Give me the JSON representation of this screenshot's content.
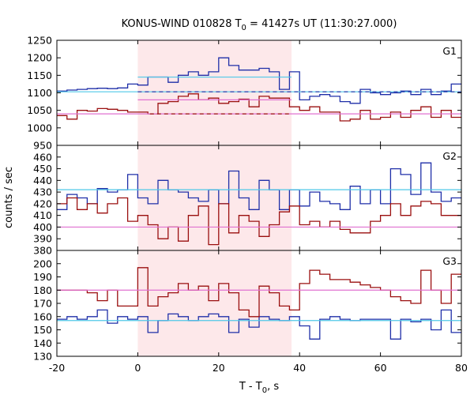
{
  "figure": {
    "title_main": "KONUS-WIND 010828 T",
    "title_sub": "0",
    "title_rest": " = 41427s UT (11:30:27.000)",
    "xlabel_main": "T - T",
    "xlabel_sub": "0",
    "xlabel_rest": ", s",
    "ylabel": "counts / sec"
  },
  "colors": {
    "blue": "#1f2fa8",
    "red": "#9a0f0f",
    "cyan": "#4fc8e8",
    "pink": "#e070d0",
    "shade": "#fde8ea"
  },
  "chart_data": [
    {
      "type": "line",
      "panel": "G1",
      "label": "G1",
      "xlim": [
        -20,
        80
      ],
      "ylim": [
        950,
        1250
      ],
      "yticks": [
        950,
        1000,
        1050,
        1100,
        1150,
        1200,
        1250
      ],
      "shaded_interval": [
        0,
        38
      ],
      "bin_edges": [
        -20,
        -17.5,
        -15,
        -12.5,
        -10,
        -7.5,
        -5,
        -2.5,
        0,
        2.5,
        5,
        7.5,
        10,
        12.5,
        15,
        17.5,
        20,
        22.5,
        25,
        27.5,
        30,
        32.5,
        35,
        37.5,
        40,
        42.5,
        45,
        47.5,
        50,
        52.5,
        55,
        57.5,
        60,
        62.5,
        65,
        67.5,
        70,
        72.5,
        75,
        77.5,
        80
      ],
      "series": [
        {
          "color": "blue",
          "style": "step",
          "values": [
            1105,
            1108,
            1110,
            1112,
            1113,
            1112,
            1114,
            1125,
            1122,
            1145,
            1145,
            1130,
            1150,
            1160,
            1150,
            1160,
            1200,
            1178,
            1165,
            1165,
            1170,
            1160,
            1110,
            1160,
            1080,
            1090,
            1095,
            1090,
            1075,
            1070,
            1110,
            1100,
            1095,
            1100,
            1105,
            1095,
            1110,
            1095,
            1105,
            1125
          ]
        },
        {
          "color": "red",
          "style": "step",
          "values": [
            1035,
            1025,
            1050,
            1048,
            1055,
            1053,
            1050,
            1045,
            1045,
            1040,
            1070,
            1075,
            1090,
            1097,
            1080,
            1085,
            1070,
            1075,
            1082,
            1060,
            1090,
            1085,
            1085,
            1060,
            1050,
            1060,
            1045,
            1045,
            1020,
            1025,
            1050,
            1025,
            1030,
            1045,
            1030,
            1050,
            1060,
            1030,
            1050,
            1030
          ]
        },
        {
          "color": "cyan",
          "style": "flat",
          "segments": [
            {
              "x": [
                -20,
                80
              ],
              "y": 1103
            },
            {
              "x": [
                0,
                38
              ],
              "y": 1145
            }
          ]
        },
        {
          "color": "blue",
          "style": "dashed",
          "segments": [
            {
              "x": [
                0,
                80
              ],
              "y": 1103
            }
          ]
        },
        {
          "color": "pink",
          "style": "flat",
          "segments": [
            {
              "x": [
                -20,
                80
              ],
              "y": 1040
            },
            {
              "x": [
                0,
                38
              ],
              "y": 1080
            }
          ]
        },
        {
          "color": "red",
          "style": "dashed",
          "segments": [
            {
              "x": [
                3,
                38
              ],
              "y": 1040
            }
          ]
        }
      ]
    },
    {
      "type": "line",
      "panel": "G2",
      "label": "G2",
      "xlim": [
        -20,
        80
      ],
      "ylim": [
        380,
        470
      ],
      "yticks": [
        380,
        390,
        400,
        410,
        420,
        430,
        440,
        450,
        460
      ],
      "shaded_interval": [
        0,
        38
      ],
      "bin_edges": [
        -20,
        -17.5,
        -15,
        -12.5,
        -10,
        -7.5,
        -5,
        -2.5,
        0,
        2.5,
        5,
        7.5,
        10,
        12.5,
        15,
        17.5,
        20,
        22.5,
        25,
        27.5,
        30,
        32.5,
        35,
        37.5,
        40,
        42.5,
        45,
        47.5,
        50,
        52.5,
        55,
        57.5,
        60,
        62.5,
        65,
        67.5,
        70,
        72.5,
        75,
        77.5,
        80
      ],
      "series": [
        {
          "color": "blue",
          "style": "step",
          "values": [
            415,
            428,
            425,
            420,
            433,
            430,
            432,
            445,
            425,
            420,
            440,
            432,
            430,
            425,
            422,
            432,
            420,
            448,
            425,
            415,
            440,
            432,
            415,
            432,
            418,
            430,
            422,
            420,
            415,
            435,
            420,
            432,
            420,
            450,
            445,
            428,
            455,
            430,
            422,
            425
          ]
        },
        {
          "color": "red",
          "style": "step",
          "values": [
            420,
            425,
            415,
            420,
            412,
            420,
            425,
            405,
            410,
            402,
            390,
            400,
            388,
            410,
            418,
            385,
            420,
            395,
            410,
            405,
            392,
            402,
            413,
            418,
            402,
            405,
            400,
            405,
            398,
            395,
            395,
            405,
            410,
            420,
            410,
            418,
            422,
            420,
            410,
            410
          ]
        },
        {
          "color": "cyan",
          "style": "flat",
          "segments": [
            {
              "x": [
                -20,
                80
              ],
              "y": 432
            }
          ]
        },
        {
          "color": "pink",
          "style": "flat",
          "segments": [
            {
              "x": [
                -20,
                80
              ],
              "y": 400
            }
          ]
        }
      ]
    },
    {
      "type": "line",
      "panel": "G3",
      "label": "G3",
      "xlim": [
        -20,
        80
      ],
      "ylim": [
        130,
        210
      ],
      "yticks": [
        130,
        140,
        150,
        160,
        170,
        180,
        190,
        200
      ],
      "shaded_interval": [
        0,
        38
      ],
      "bin_edges": [
        -20,
        -17.5,
        -15,
        -12.5,
        -10,
        -7.5,
        -5,
        -2.5,
        0,
        2.5,
        5,
        7.5,
        10,
        12.5,
        15,
        17.5,
        20,
        22.5,
        25,
        27.5,
        30,
        32.5,
        35,
        37.5,
        40,
        42.5,
        45,
        47.5,
        50,
        52.5,
        55,
        57.5,
        60,
        62.5,
        65,
        67.5,
        70,
        72.5,
        75,
        77.5,
        80
      ],
      "series": [
        {
          "color": "blue",
          "style": "step",
          "values": [
            158,
            160,
            158,
            160,
            165,
            155,
            160,
            158,
            160,
            148,
            157,
            162,
            160,
            157,
            160,
            162,
            160,
            148,
            158,
            152,
            160,
            158,
            157,
            160,
            153,
            143,
            158,
            160,
            158,
            157,
            158,
            158,
            158,
            143,
            158,
            156,
            158,
            150,
            165,
            148
          ]
        },
        {
          "color": "red",
          "style": "step",
          "values": [
            180,
            180,
            180,
            178,
            172,
            180,
            168,
            168,
            197,
            168,
            175,
            178,
            185,
            180,
            183,
            172,
            185,
            178,
            165,
            160,
            183,
            178,
            168,
            165,
            185,
            195,
            192,
            188,
            188,
            186,
            184,
            182,
            180,
            175,
            172,
            170,
            195,
            180,
            170,
            192
          ]
        },
        {
          "color": "cyan",
          "style": "flat",
          "segments": [
            {
              "x": [
                -20,
                80
              ],
              "y": 157
            }
          ]
        },
        {
          "color": "pink",
          "style": "flat",
          "segments": [
            {
              "x": [
                -20,
                80
              ],
              "y": 180
            }
          ]
        }
      ]
    }
  ],
  "xticks": [
    -20,
    0,
    20,
    40,
    60,
    80
  ]
}
